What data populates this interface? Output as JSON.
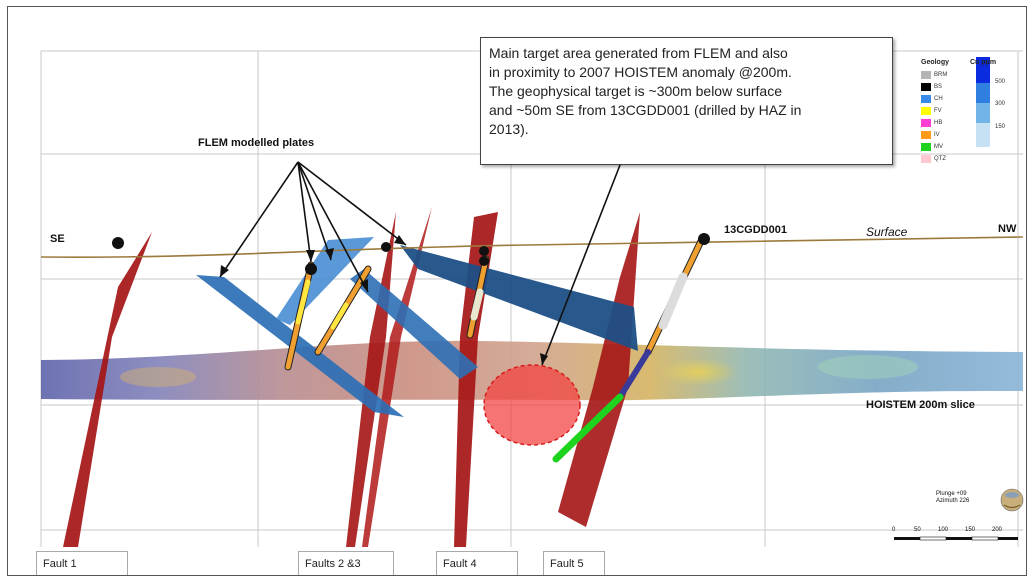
{
  "callout": {
    "line1": "Main target area generated from FLEM and also",
    "line2": "in proximity to 2007 HOISTEM anomaly @200m.",
    "line3": "The geophysical target is ~300m below surface",
    "line4": "and ~50m SE from 13CGDD001 (drilled by HAZ in",
    "line5": "2013)."
  },
  "labels": {
    "flem_plates": "FLEM modelled plates",
    "se": "SE",
    "nw": "NW",
    "surface": "Surface",
    "hole": "13CGDD001",
    "hoistem": "HOISTEM 200m slice"
  },
  "faults": [
    "Fault 1",
    "Faults 2 &3",
    "Fault 4",
    "Fault 5"
  ],
  "legend": {
    "geology_title": "Geology",
    "geology_items": [
      {
        "code": "BRM",
        "color": "#b5b5b5"
      },
      {
        "code": "BS",
        "color": "#000000"
      },
      {
        "code": "CH",
        "color": "#3a8be8"
      },
      {
        "code": "FV",
        "color": "#ffff00"
      },
      {
        "code": "HB",
        "color": "#ff3fd2"
      },
      {
        "code": "IV",
        "color": "#ff9a1a"
      },
      {
        "code": "MV",
        "color": "#1ed31e"
      },
      {
        "code": "QTZ",
        "color": "#ffc7cf"
      }
    ],
    "cu_title": "Cu ppm",
    "cu_values": [
      "500",
      "300",
      "150"
    ]
  },
  "orientation": {
    "plunge": "Plunge +09",
    "azimuth": "Azimuth 226"
  },
  "scale": [
    "0",
    "50",
    "100",
    "150",
    "200"
  ],
  "colors": {
    "fault": "#a51515",
    "plate": "#2d6fb5",
    "plate_dark": "#1e4f86",
    "surface": "#9c7a3c",
    "target": "#f2403e"
  }
}
